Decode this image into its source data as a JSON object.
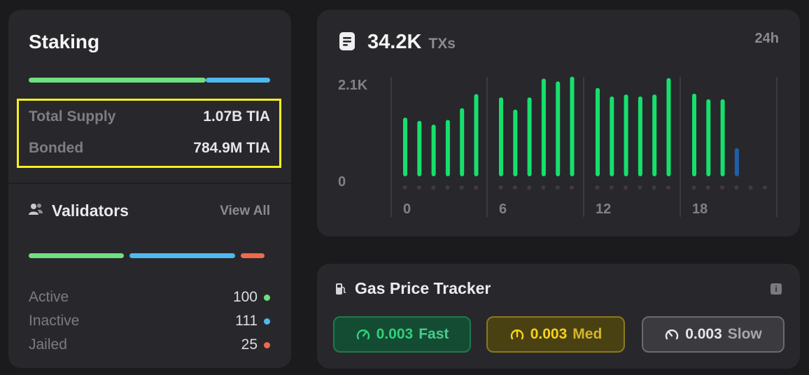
{
  "staking": {
    "title": "Staking",
    "supply_bar": [
      {
        "color": "#6fe07f",
        "fraction": 0.7335
      },
      {
        "color": "#4fb8ee",
        "fraction": 0.2665
      }
    ],
    "total_supply_label": "Total Supply",
    "total_supply_value": "1.07B TIA",
    "bonded_label": "Bonded",
    "bonded_value": "784.9M TIA"
  },
  "validators": {
    "title": "Validators",
    "view_all_label": "View All",
    "items": [
      {
        "label": "Active",
        "value": "100",
        "color": "#6fe07f"
      },
      {
        "label": "Inactive",
        "value": "111",
        "color": "#4fb8ee"
      },
      {
        "label": "Jailed",
        "value": "25",
        "color": "#f06a4a"
      }
    ],
    "icon": "users-icon"
  },
  "txs": {
    "count": "34.2K",
    "unit": "TXs",
    "period": "24h",
    "icon": "document-icon"
  },
  "chart_data": {
    "type": "bar",
    "x": [
      0,
      1,
      2,
      3,
      4,
      5,
      6,
      7,
      8,
      9,
      10,
      11,
      12,
      13,
      14,
      15,
      16,
      17,
      18,
      19,
      20,
      21,
      22,
      23
    ],
    "x_tick_labels": [
      "0",
      "6",
      "12",
      "18"
    ],
    "y_tick_labels": [
      "2.1K",
      "0"
    ],
    "ylim": [
      0,
      2100
    ],
    "values": [
      1250,
      1180,
      1100,
      1200,
      1450,
      1750,
      1680,
      1420,
      1680,
      2080,
      2020,
      2120,
      1880,
      1700,
      1740,
      1700,
      1740,
      2090,
      1760,
      1640,
      1640,
      600,
      0,
      0
    ],
    "bar_colors": [
      "#16e06d",
      "#16e06d",
      "#16e06d",
      "#16e06d",
      "#16e06d",
      "#16e06d",
      "#16e06d",
      "#16e06d",
      "#16e06d",
      "#16e06d",
      "#16e06d",
      "#16e06d",
      "#16e06d",
      "#16e06d",
      "#16e06d",
      "#16e06d",
      "#16e06d",
      "#16e06d",
      "#16e06d",
      "#16e06d",
      "#16e06d",
      "#1f5fa8",
      "#16e06d",
      "#16e06d"
    ],
    "grid": "vertical"
  },
  "gas": {
    "title": "Gas Price Tracker",
    "icon": "gas-pump-icon",
    "fast": {
      "value": "0.003",
      "label": "Fast"
    },
    "med": {
      "value": "0.003",
      "label": "Med"
    },
    "slow": {
      "value": "0.003",
      "label": "Slow"
    }
  }
}
